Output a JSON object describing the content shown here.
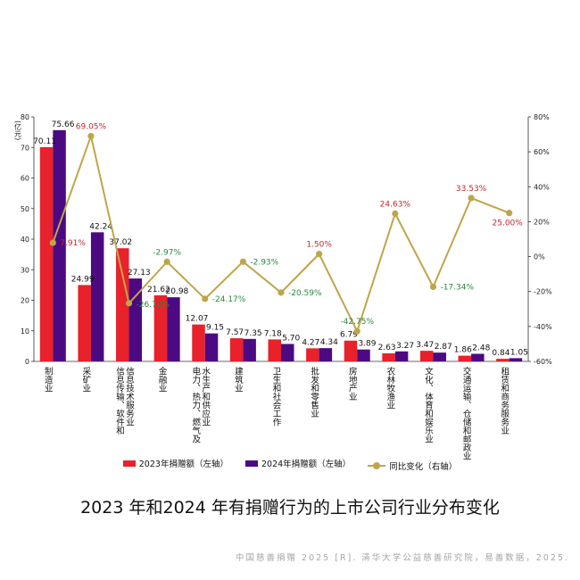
{
  "chart_data": {
    "type": "bar",
    "title": "2023 年和2024 年有捐赠行为的上市公司行业分布变化",
    "ylabel_left": "(亿元)",
    "ylim_left": [
      0,
      80
    ],
    "yticks_left": [
      "0",
      "10",
      "20",
      "30",
      "40",
      "50",
      "60",
      "70",
      "80"
    ],
    "ylim_right": [
      -60,
      80
    ],
    "yticks_right": [
      "-60%",
      "-40%",
      "-20%",
      "0%",
      "20%",
      "40%",
      "60%",
      "80%"
    ],
    "categories": [
      "制造业",
      "采矿业",
      "信息传输、软件和信息技术服务业",
      "金融业",
      "电力、热力、燃气及水生产和供应业",
      "建筑业",
      "卫生和社会工作",
      "批发和零售业",
      "房地产业",
      "农林牧渔业",
      "文化、体育和娱乐业",
      "交通运输、仓储和邮政业",
      "租赁和商务服务业"
    ],
    "category_lines": [
      [
        "制造业"
      ],
      [
        "采矿业"
      ],
      [
        "信息传输、软件和",
        "信息技术服务业"
      ],
      [
        "金融业"
      ],
      [
        "电力、热力、燃气及",
        "水生产和供应业"
      ],
      [
        "建筑业"
      ],
      [
        "卫生和社会工作"
      ],
      [
        "批发和零售业"
      ],
      [
        "房地产业"
      ],
      [
        "农林牧渔业"
      ],
      [
        "文化、体育和娱乐业"
      ],
      [
        "交通运输、仓储和邮政业"
      ],
      [
        "租赁和商务服务业"
      ]
    ],
    "series": [
      {
        "name": "2023年捐赠额（左轴）",
        "axis": "left",
        "kind": "bar",
        "color": "#e8212a",
        "values": [
          70.11,
          24.99,
          37.02,
          21.62,
          12.07,
          7.57,
          7.18,
          4.27,
          6.79,
          2.63,
          3.47,
          1.86,
          0.84
        ],
        "labels": [
          "70.11",
          "24.99",
          "37.02",
          "21.62",
          "12.07",
          "7.57",
          "7.18",
          "4.27",
          "6.79",
          "2.63",
          "3.47",
          "1.86",
          "0.84"
        ]
      },
      {
        "name": "2024年捐赠额（左轴）",
        "axis": "left",
        "kind": "bar",
        "color": "#4b0a82",
        "values": [
          75.66,
          42.24,
          27.13,
          20.98,
          9.15,
          7.35,
          5.7,
          4.34,
          3.89,
          3.27,
          2.87,
          2.48,
          1.05
        ],
        "labels": [
          "75.66",
          "42.24",
          "27.13",
          "20.98",
          "9.15",
          "7.35",
          "5.70",
          "4.34",
          "3.89",
          "3.27",
          "2.87",
          "2.48",
          "1.05"
        ]
      },
      {
        "name": "同比变化（右轴）",
        "axis": "right",
        "kind": "line",
        "color": "#bfa54a",
        "values": [
          7.91,
          69.05,
          -26.72,
          -2.97,
          -24.17,
          -2.93,
          -20.59,
          1.5,
          -42.75,
          24.63,
          -17.34,
          33.53,
          25.0
        ],
        "labels": [
          "7.91%",
          "69.05%",
          "-26.72%",
          "-2.97%",
          "-24.17%",
          "-2.93%",
          "-20.59%",
          "1.50%",
          "-42.75%",
          "24.63%",
          "-17.34%",
          "33.53%",
          "25.00%"
        ]
      }
    ],
    "positive_label_color": "#c0272d",
    "negative_label_color": "#2a8a3e",
    "legend_placement": "bottom",
    "grid": false
  },
  "source_text": "中国慈善捐赠 2025 [R]. 清华大学公益慈善研究院，易善数据，2025."
}
